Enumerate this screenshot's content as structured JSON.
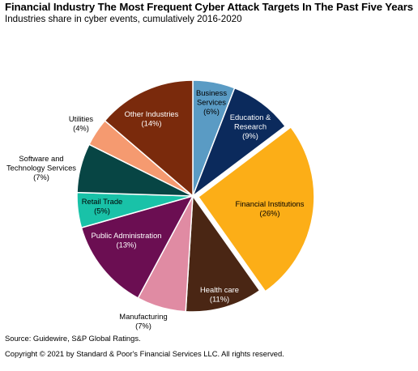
{
  "title": "Financial Industry The Most Frequent Cyber Attack Targets In The Past Five Years",
  "subtitle": "Industries share in cyber events, cumulatively 2016-2020",
  "source": "Source: Guidewire, S&P Global Ratings.",
  "copyright": "Copyright © 2021 by Standard & Poor's Financial Services LLC. All rights reserved.",
  "chart_data": {
    "type": "pie",
    "title": "Financial Industry The Most Frequent Cyber Attack Targets In The Past Five Years",
    "subtitle": "Industries share in cyber events, cumulatively 2016-2020",
    "unit": "%",
    "start": "12 o'clock",
    "direction": "clockwise",
    "exploded_slice": "Financial Institutions",
    "slices": [
      {
        "label": "Business Services",
        "value": 6,
        "value_label": "(6%)",
        "color": "#5a9bc4"
      },
      {
        "label": "Education & Research",
        "value": 9,
        "value_label": "(9%)",
        "color": "#0b2a5c"
      },
      {
        "label": "Financial Institutions",
        "value": 26,
        "value_label": "(26%)",
        "color": "#fcae17"
      },
      {
        "label": "Health care",
        "value": 11,
        "value_label": "(11%)",
        "color": "#4a2614"
      },
      {
        "label": "Manufacturing",
        "value": 7,
        "value_label": "(7%)",
        "color": "#e08ba3"
      },
      {
        "label": "Public Administration",
        "value": 13,
        "value_label": "(13%)",
        "color": "#6b0e52"
      },
      {
        "label": "Retail Trade",
        "value": 5,
        "value_label": "(5%)",
        "color": "#19c2a8"
      },
      {
        "label": "Software and Technology Services",
        "value": 7,
        "value_label": "(7%)",
        "color": "#074544"
      },
      {
        "label": "Utilities",
        "value": 4,
        "value_label": "(4%)",
        "color": "#f59a70"
      },
      {
        "label": "Other Industries",
        "value": 14,
        "value_label": "(14%)",
        "color": "#7a2a0c"
      }
    ]
  }
}
